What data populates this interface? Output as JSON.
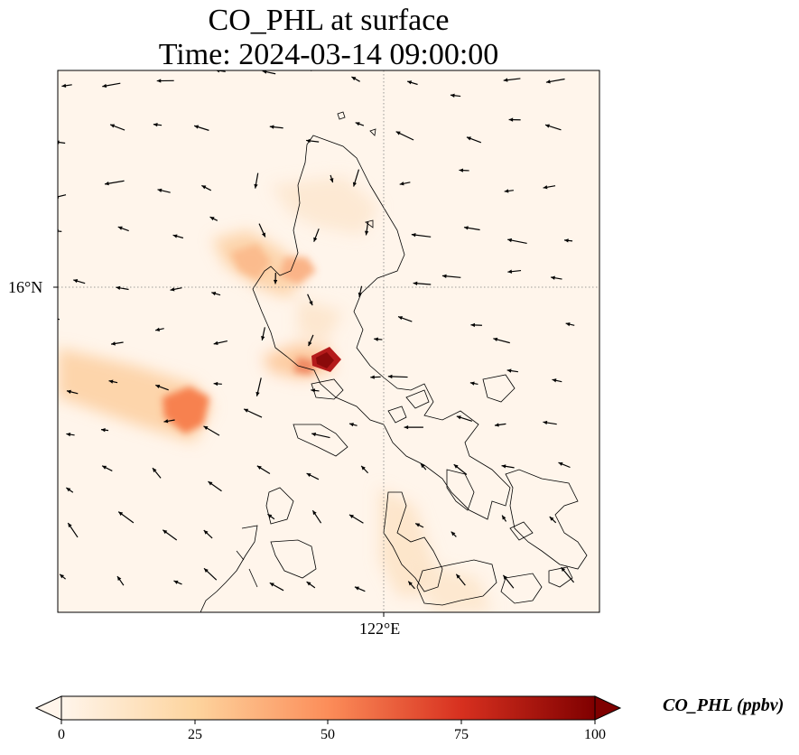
{
  "title": {
    "line1": "CO_PHL at surface",
    "line2": "Time: 2024-03-14 09:00:00"
  },
  "axes": {
    "lat_tick": "16°N",
    "lon_tick": "122°E"
  },
  "colorbar": {
    "label": "CO_PHL (ppbv)",
    "ticks": [
      "0",
      "25",
      "50",
      "75",
      "100"
    ],
    "range": [
      0,
      100
    ],
    "colormap": [
      "#fff5eb",
      "#fdd49e",
      "#fc8d59",
      "#d7301f",
      "#7f0000"
    ],
    "extend": "both"
  },
  "map": {
    "background_color": "#fff5eb",
    "gridlines": "dotted",
    "coastline_color": "#000000",
    "wind_vectors": "black quiver arrows"
  }
}
